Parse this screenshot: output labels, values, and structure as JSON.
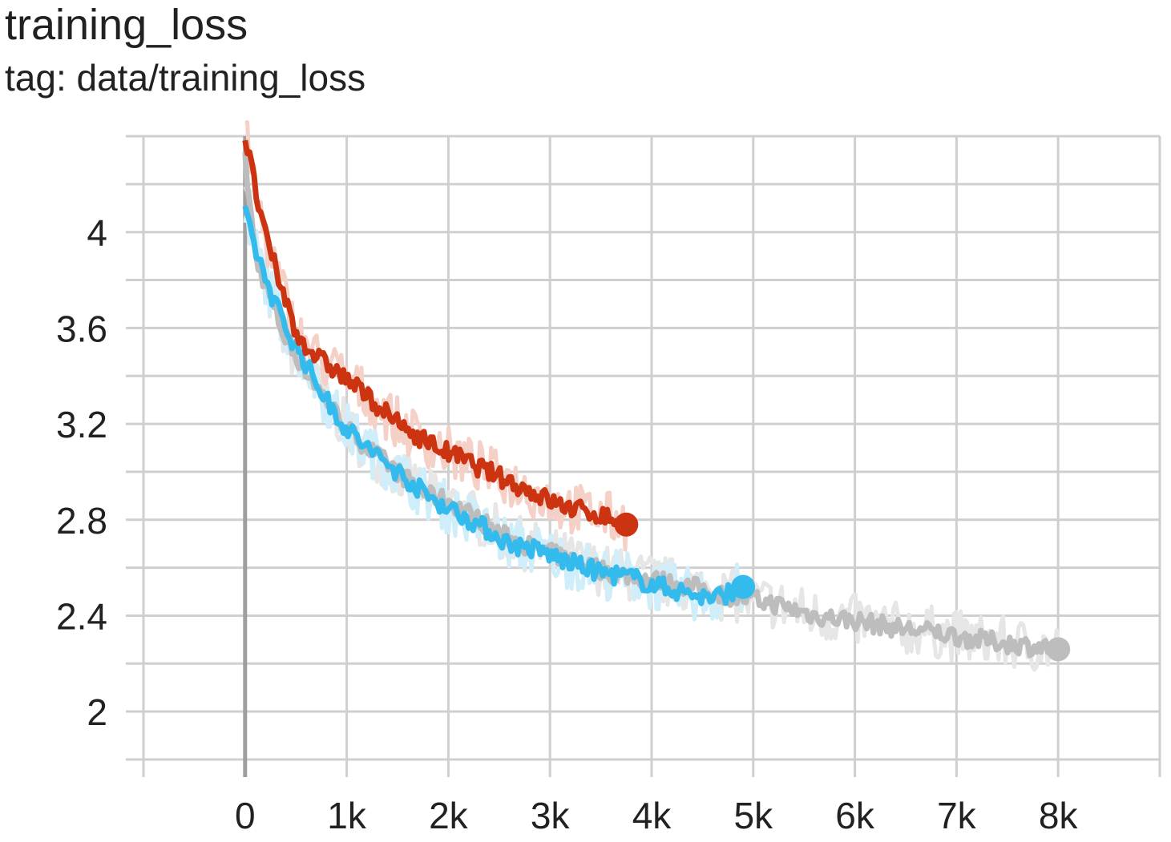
{
  "chart_data": {
    "type": "line",
    "title": "training_loss",
    "subtitle": "tag: data/training_loss",
    "xlabel": "",
    "ylabel": "",
    "xlim": [
      -1000,
      9000
    ],
    "ylim": [
      1.8,
      4.4
    ],
    "x_ticks": [
      0,
      1000,
      2000,
      3000,
      4000,
      5000,
      6000,
      7000,
      8000
    ],
    "x_tick_labels": [
      "0",
      "1k",
      "2k",
      "3k",
      "4k",
      "5k",
      "6k",
      "7k",
      "8k"
    ],
    "y_ticks": [
      2.0,
      2.4,
      2.8,
      3.2,
      3.6,
      4.0
    ],
    "y_tick_labels": [
      "2",
      "2.4",
      "2.8",
      "3.2",
      "3.6",
      "4"
    ],
    "grid": true,
    "series": [
      {
        "color": "#bdbdbd",
        "raw_color": "#e6e6e6",
        "x": [
          0,
          100,
          250,
          400,
          600,
          800,
          1000,
          1200,
          1500,
          1800,
          2000,
          2300,
          2600,
          3000,
          3300,
          3600,
          4000,
          4400,
          4800,
          5200,
          5600,
          6000,
          6400,
          6800,
          7200,
          7600,
          8000
        ],
        "values": [
          4.3,
          3.9,
          3.72,
          3.55,
          3.42,
          3.3,
          3.18,
          3.1,
          3.0,
          2.9,
          2.88,
          2.8,
          2.72,
          2.66,
          2.62,
          2.58,
          2.55,
          2.52,
          2.48,
          2.45,
          2.4,
          2.38,
          2.35,
          2.33,
          2.3,
          2.28,
          2.26
        ]
      },
      {
        "color": "#33bbee",
        "raw_color": "#cfeefa",
        "x": [
          0,
          100,
          250,
          400,
          600,
          800,
          1000,
          1200,
          1500,
          1800,
          2000,
          2300,
          2600,
          2900,
          3200,
          3500,
          3800,
          4000,
          4300,
          4600,
          4900
        ],
        "values": [
          4.07,
          3.93,
          3.75,
          3.6,
          3.45,
          3.3,
          3.18,
          3.1,
          3.0,
          2.9,
          2.85,
          2.78,
          2.7,
          2.67,
          2.62,
          2.58,
          2.56,
          2.53,
          2.5,
          2.47,
          2.52
        ]
      },
      {
        "color": "#cc3311",
        "raw_color": "#f5d0c7",
        "x": [
          0,
          100,
          200,
          350,
          500,
          700,
          900,
          1100,
          1300,
          1500,
          1700,
          1900,
          2100,
          2300,
          2500,
          2700,
          2900,
          3100,
          3300,
          3500,
          3700,
          3750
        ],
        "values": [
          4.4,
          4.18,
          3.98,
          3.78,
          3.58,
          3.48,
          3.42,
          3.35,
          3.28,
          3.2,
          3.15,
          3.1,
          3.06,
          3.02,
          2.98,
          2.94,
          2.9,
          2.86,
          2.84,
          2.82,
          2.79,
          2.78
        ]
      }
    ]
  }
}
